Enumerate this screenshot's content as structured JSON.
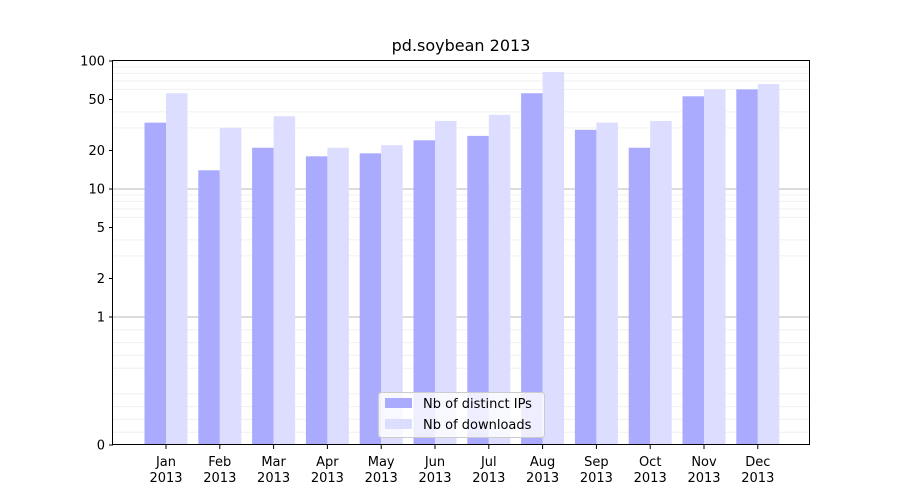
{
  "chart_data": {
    "type": "bar",
    "title": "pd.soybean 2013",
    "xlabel": "",
    "ylabel": "",
    "yscale": "symlog",
    "ylim": [
      0,
      100
    ],
    "yticks": [
      0,
      1,
      2,
      5,
      10,
      20,
      50,
      100
    ],
    "ytick_labels": [
      "0",
      "1",
      "2",
      "5",
      "10",
      "20",
      "50",
      "100"
    ],
    "categories": [
      "Jan\n2013",
      "Feb\n2013",
      "Mar\n2013",
      "Apr\n2013",
      "May\n2013",
      "Jun\n2013",
      "Jul\n2013",
      "Aug\n2013",
      "Sep\n2013",
      "Oct\n2013",
      "Nov\n2013",
      "Dec\n2013"
    ],
    "category_lines": [
      [
        "Jan",
        "2013"
      ],
      [
        "Feb",
        "2013"
      ],
      [
        "Mar",
        "2013"
      ],
      [
        "Apr",
        "2013"
      ],
      [
        "May",
        "2013"
      ],
      [
        "Jun",
        "2013"
      ],
      [
        "Jul",
        "2013"
      ],
      [
        "Aug",
        "2013"
      ],
      [
        "Sep",
        "2013"
      ],
      [
        "Oct",
        "2013"
      ],
      [
        "Nov",
        "2013"
      ],
      [
        "Dec",
        "2013"
      ]
    ],
    "series": [
      {
        "name": "Nb of distinct IPs",
        "color": "#aaaaff",
        "values": [
          33,
          14,
          21,
          18,
          19,
          24,
          26,
          56,
          29,
          21,
          53,
          60
        ]
      },
      {
        "name": "Nb of downloads",
        "color": "#ddddff",
        "values": [
          56,
          30,
          37,
          21,
          22,
          34,
          38,
          82,
          33,
          34,
          60,
          66
        ]
      }
    ],
    "grid": true,
    "legend_position": "lower center"
  }
}
